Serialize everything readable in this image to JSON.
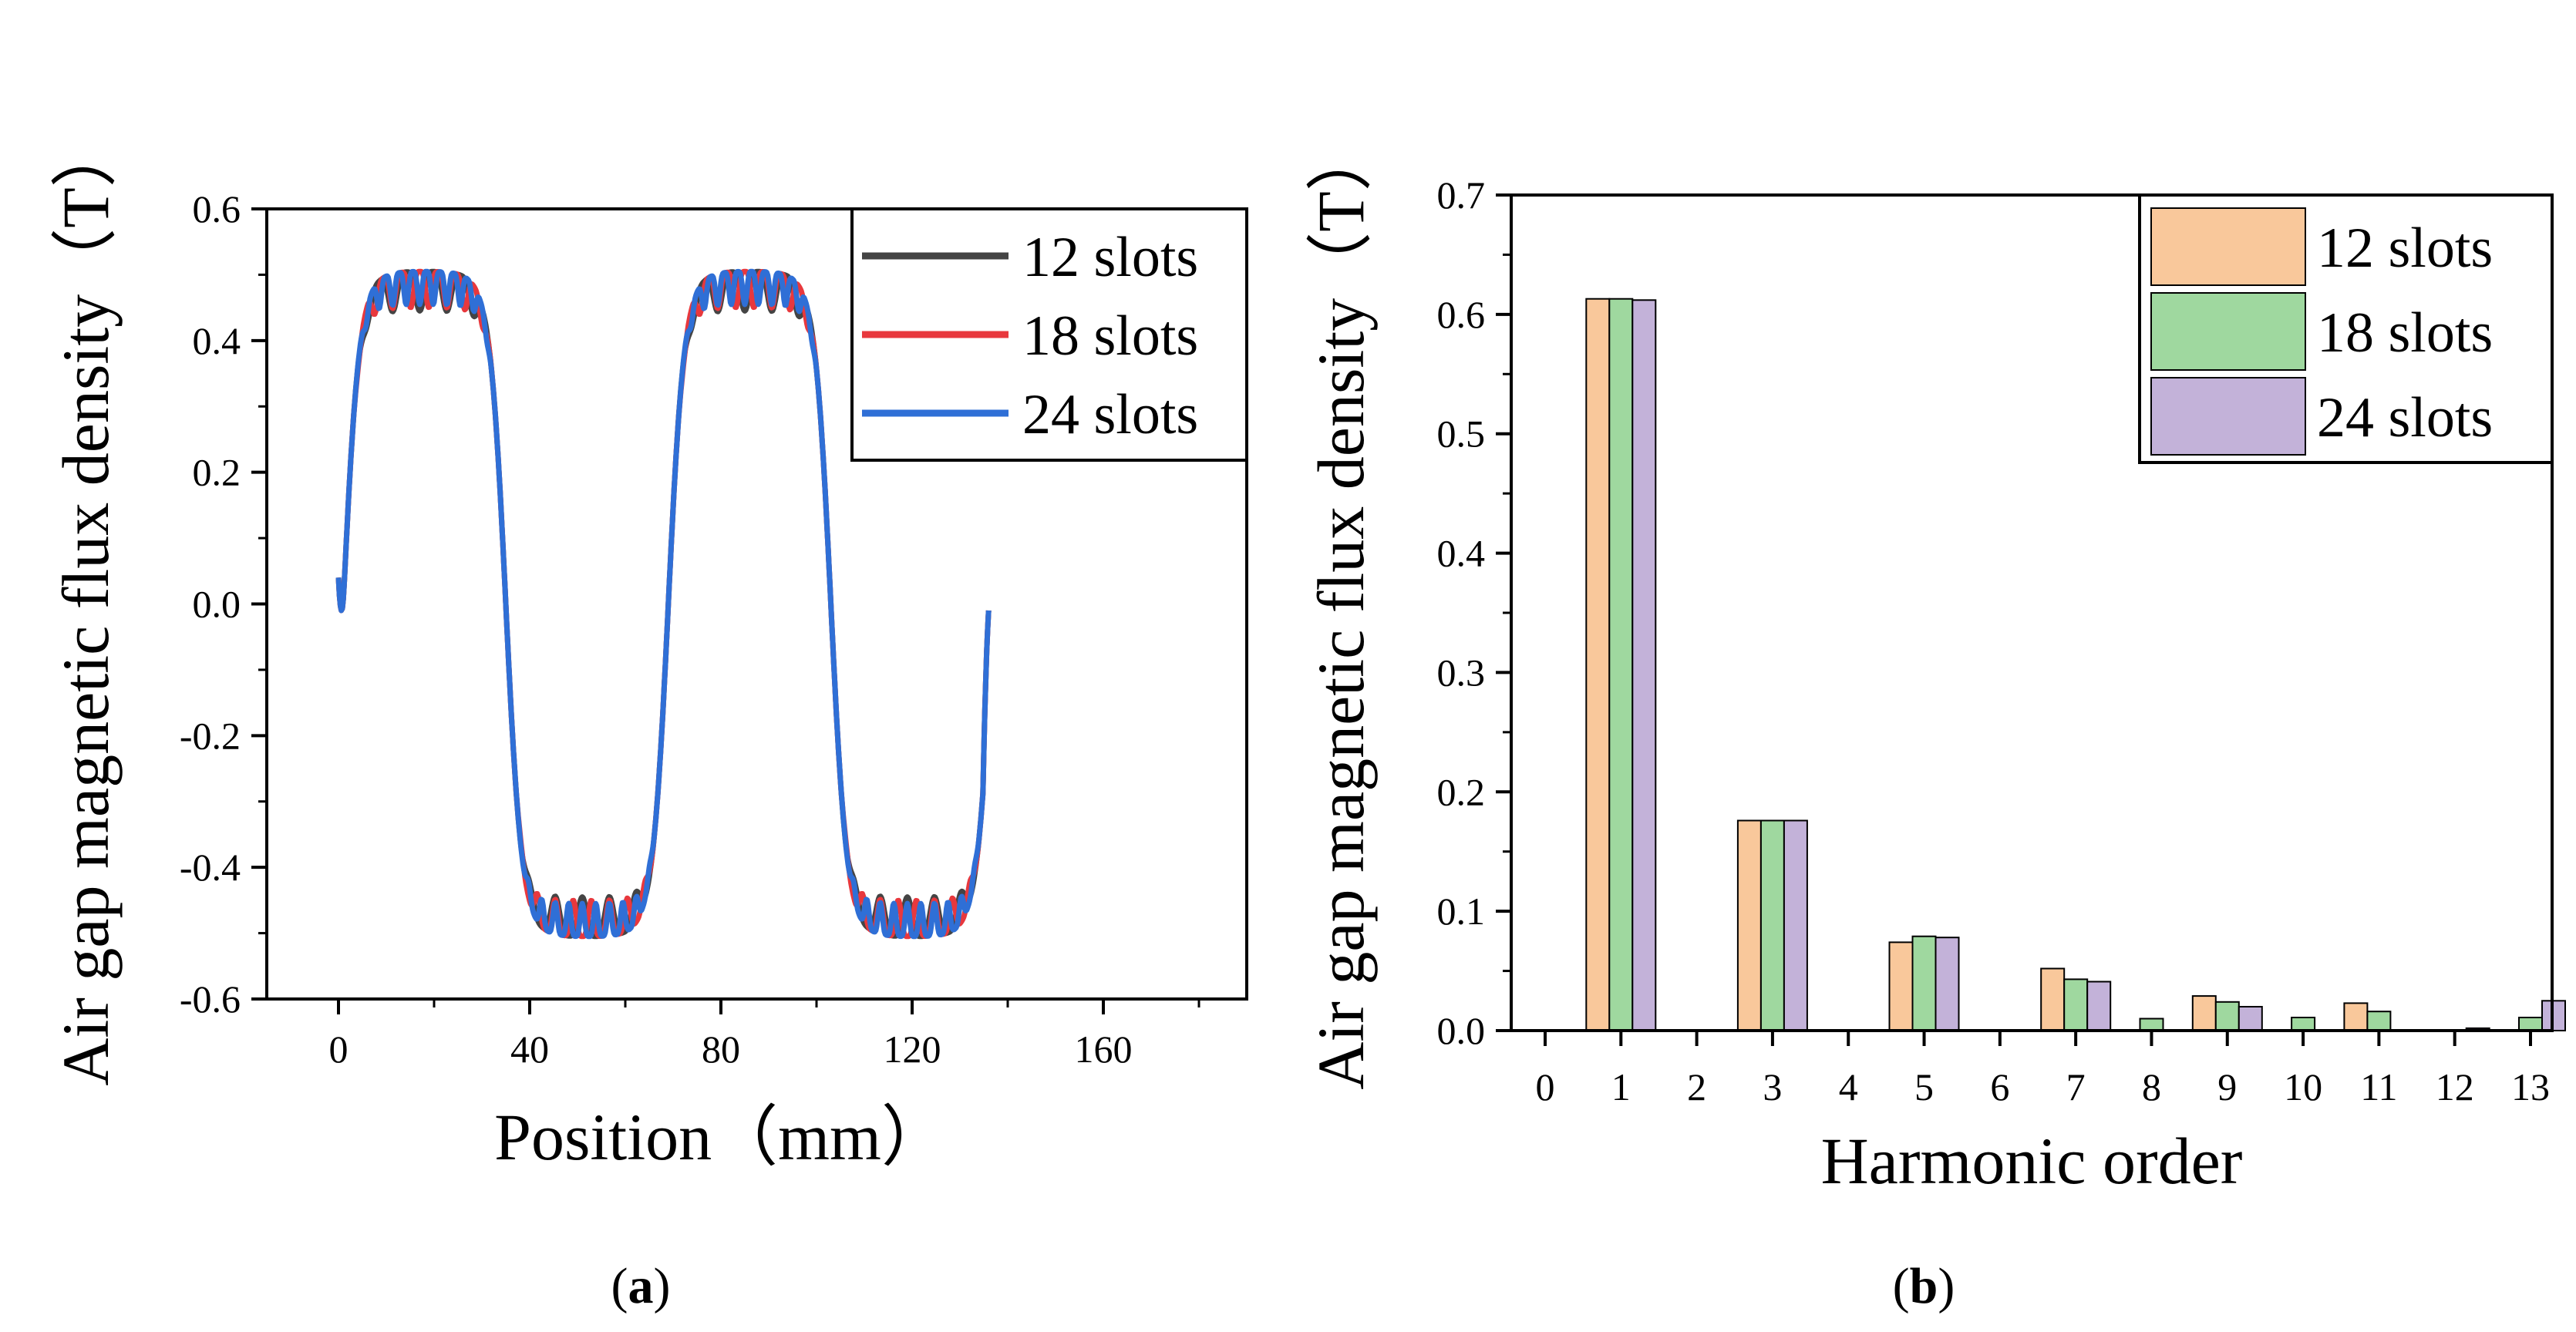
{
  "colors": {
    "s12_line": "#444444",
    "s18_line": "#e8383d",
    "s24_line": "#2f6fd6",
    "s12_bar": "#f9c89b",
    "s18_bar": "#9fd89f",
    "s24_bar": "#c3b2d9"
  },
  "chart_data": [
    {
      "type": "line",
      "panel_label": "a",
      "xlabel": "Position（mm）",
      "ylabel": "Air gap magnetic flux density（T）",
      "xlim": [
        -15,
        190
      ],
      "ylim": [
        -0.6,
        0.6
      ],
      "xticks": [
        0,
        40,
        80,
        120,
        160
      ],
      "xtick_labels": [
        "0",
        "40",
        "80",
        "120",
        "160"
      ],
      "yticks": [
        -0.6,
        -0.4,
        -0.2,
        0.0,
        0.2,
        0.4,
        0.6
      ],
      "ytick_labels": [
        "-0.6",
        "-0.4",
        "-0.2",
        "0.0",
        "0.2",
        "0.4",
        "0.6"
      ],
      "legend_position": "top-right",
      "series": [
        {
          "name": "12 slots",
          "slots": 12,
          "x_range": [
            0,
            136
          ],
          "plateau": 0.505,
          "ripple_depth": 0.06,
          "start_value": 0.04,
          "end_value": -0.01
        },
        {
          "name": "18 slots",
          "slots": 18,
          "x_range": [
            0,
            136
          ],
          "plateau": 0.505,
          "ripple_depth": 0.055,
          "start_value": 0.04,
          "end_value": -0.01
        },
        {
          "name": "24 slots",
          "slots": 24,
          "x_range": [
            0,
            136
          ],
          "plateau": 0.505,
          "ripple_depth": 0.05,
          "start_value": 0.04,
          "end_value": -0.01
        }
      ]
    },
    {
      "type": "bar",
      "panel_label": "b",
      "xlabel": "Harmonic order",
      "ylabel": "Air gap magnetic flux density（T）",
      "categories": [
        "0",
        "1",
        "2",
        "3",
        "4",
        "5",
        "6",
        "7",
        "8",
        "9",
        "10",
        "11",
        "12",
        "13"
      ],
      "ylim": [
        0,
        0.7
      ],
      "yticks": [
        0.0,
        0.1,
        0.2,
        0.3,
        0.4,
        0.5,
        0.6,
        0.7
      ],
      "ytick_labels": [
        "0.0",
        "0.1",
        "0.2",
        "0.3",
        "0.4",
        "0.5",
        "0.6",
        "0.7"
      ],
      "legend_position": "top-right",
      "series": [
        {
          "name": "12 slots",
          "values": [
            0,
            0.613,
            0,
            0.176,
            0,
            0.074,
            0,
            0.052,
            0,
            0.029,
            0,
            0.023,
            0,
            0
          ]
        },
        {
          "name": "18 slots",
          "values": [
            0,
            0.613,
            0,
            0.176,
            0,
            0.079,
            0,
            0.043,
            0.01,
            0.024,
            0.011,
            0.016,
            0,
            0.011
          ]
        },
        {
          "name": "24 slots",
          "values": [
            0,
            0.612,
            0,
            0.176,
            0,
            0.078,
            0,
            0.041,
            0,
            0.02,
            0,
            0,
            0.002,
            0.025
          ]
        }
      ]
    }
  ]
}
